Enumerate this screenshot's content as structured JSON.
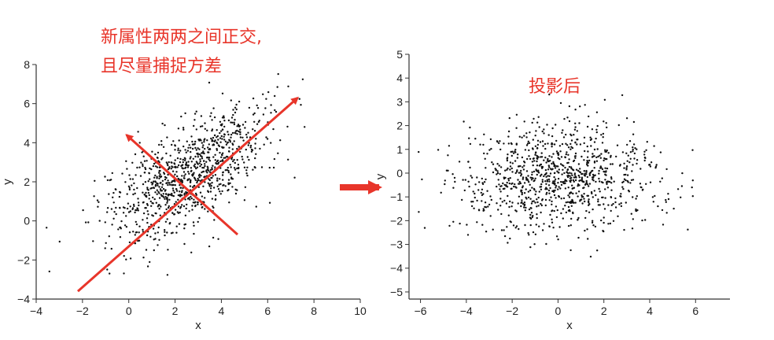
{
  "annotations": {
    "left_line1": "新属性两两之间正交,",
    "left_line2": "且尽量捕捉方差",
    "right_title": "投影后"
  },
  "colors": {
    "accent": "#e8352a",
    "points": "#111111",
    "axis": "#333333"
  },
  "chart_data": [
    {
      "type": "scatter",
      "xlabel": "x",
      "ylabel": "y",
      "xlim": [
        -4,
        10
      ],
      "ylim": [
        -4,
        8
      ],
      "xticks": [
        "−4",
        "−2",
        "0",
        "2",
        "4",
        "6",
        "8",
        "10"
      ],
      "yticks": [
        "−4",
        "−2",
        "0",
        "2",
        "4",
        "6",
        "8"
      ],
      "distribution": {
        "mean": [
          2.5,
          2.3
        ],
        "principal_axis_deg": 45,
        "sd_major": 2.2,
        "sd_minor": 1.05,
        "n": 1000
      },
      "arrows": [
        {
          "from": [
            -2.2,
            -3.6
          ],
          "to": [
            7.3,
            6.3
          ]
        },
        {
          "from": [
            4.7,
            -0.7
          ],
          "to": [
            -0.1,
            4.4
          ]
        }
      ]
    },
    {
      "type": "scatter",
      "xlabel": "x",
      "ylabel": "y",
      "xlim": [
        -6.5,
        7.5
      ],
      "ylim": [
        -5.3,
        5
      ],
      "xticks": [
        "−6",
        "−4",
        "−2",
        "0",
        "2",
        "4",
        "6"
      ],
      "yticks": [
        "−5",
        "−4",
        "−3",
        "−2",
        "−1",
        "0",
        "1",
        "2",
        "3",
        "4",
        "5"
      ],
      "distribution": {
        "mean": [
          0.0,
          -0.2
        ],
        "sd_x": 2.2,
        "sd_y": 1.05,
        "n": 1000
      }
    }
  ]
}
